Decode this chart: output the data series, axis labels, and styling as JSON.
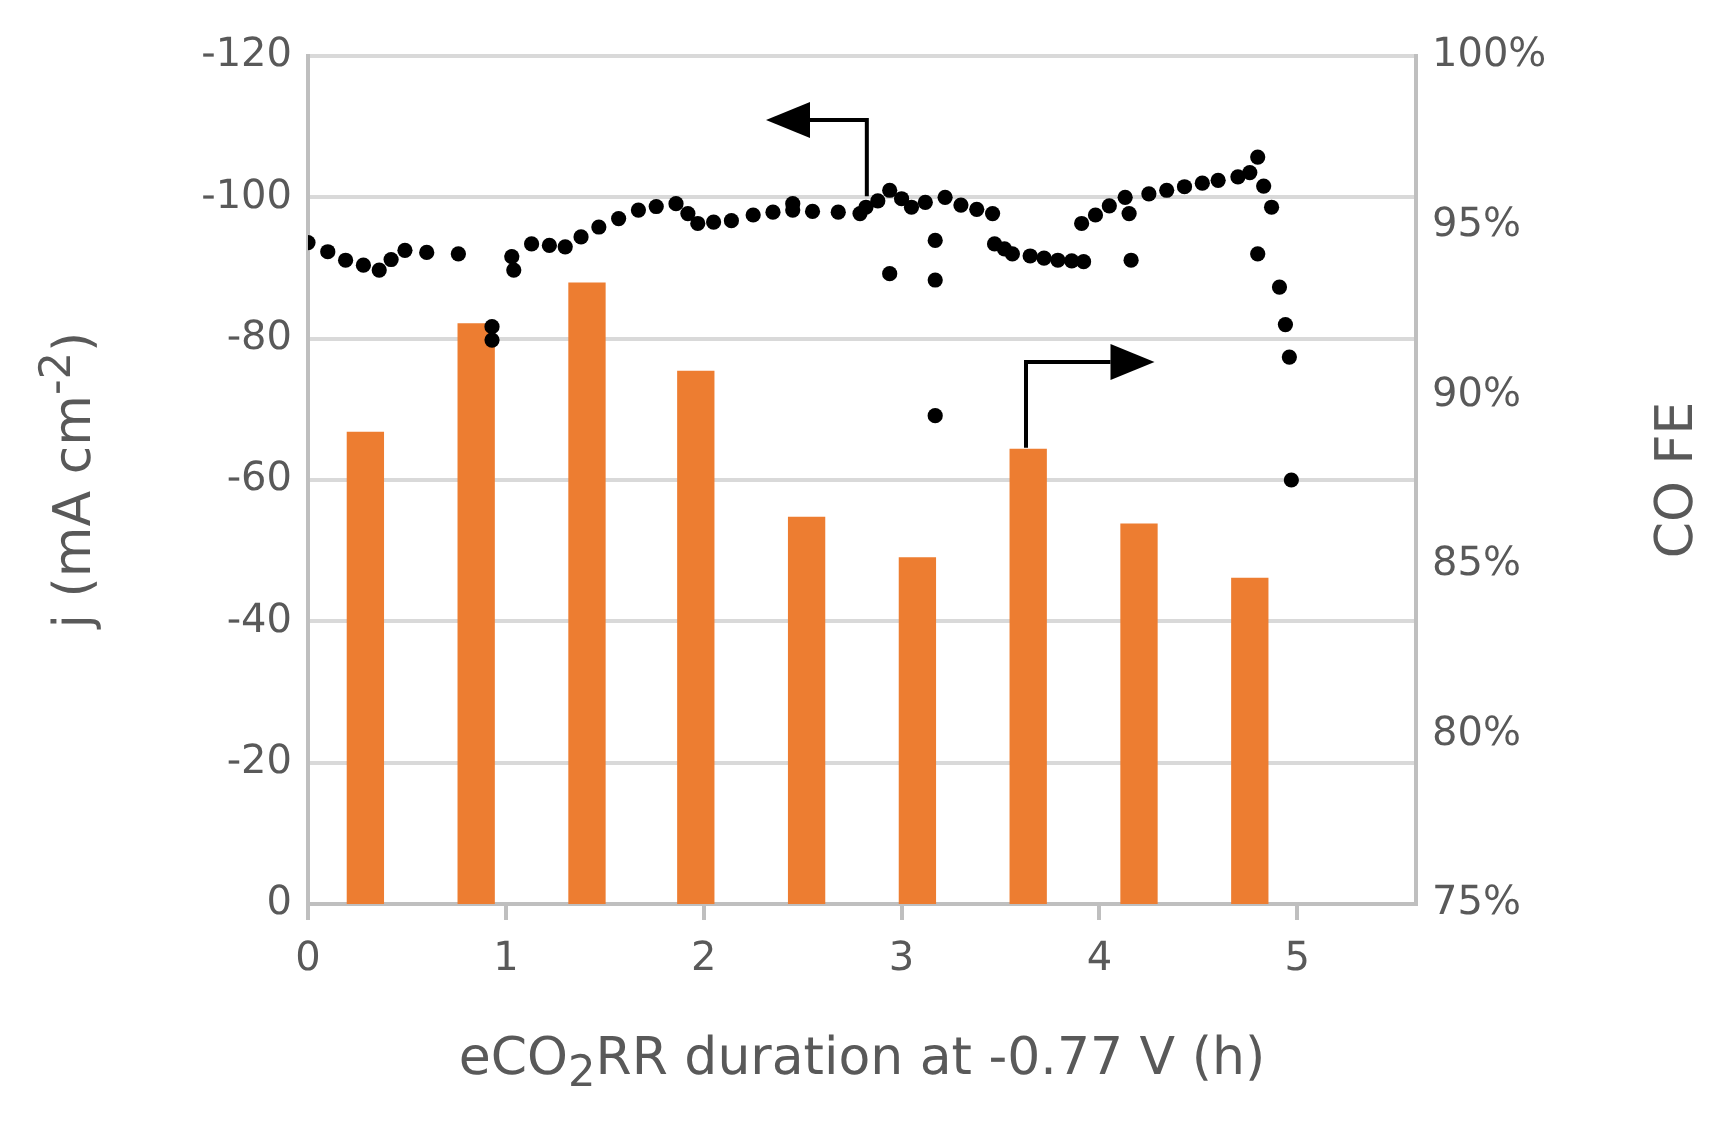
{
  "chart_data": {
    "type": "bar",
    "xlabel": "eCO$_{2}$RR duration at -0.77 V (h)",
    "ylabel": "j (mA cm$^{-2}$)",
    "y2label": "CO FE",
    "xlim": [
      0,
      5.6
    ],
    "xticks": [
      0,
      1,
      2,
      3,
      4,
      5
    ],
    "ylim": [
      0,
      -120
    ],
    "yticks": [
      0,
      -20,
      -40,
      -60,
      -80,
      -100,
      -120
    ],
    "y2lim": [
      75,
      100
    ],
    "y2ticks": [
      {
        "value": 75,
        "label": "75%"
      },
      {
        "value": 80,
        "label": "80%"
      },
      {
        "value": 85,
        "label": "85%"
      },
      {
        "value": 90,
        "label": "90%"
      },
      {
        "value": 95,
        "label": "95%"
      },
      {
        "value": 100,
        "label": "100%"
      }
    ],
    "grid": "y",
    "marker": "circle",
    "series": [
      {
        "axis": "y2",
        "color": "#ed7d31",
        "x": [
          0.29,
          0.85,
          1.41,
          1.96,
          2.52,
          3.08,
          3.64,
          4.2,
          4.76
        ],
        "values": [
          88.9,
          92.1,
          93.3,
          90.7,
          86.4,
          85.2,
          88.4,
          86.2,
          84.6
        ]
      },
      {
        "type": "scatter",
        "axis": "y",
        "color": "#000000",
        "x": [
          0,
          0.1,
          0.19,
          0.28,
          0.36,
          0.42,
          0.49,
          0.6,
          0.76,
          0.93,
          0.93,
          1.03,
          1.04,
          1.13,
          1.22,
          1.3,
          1.38,
          1.47,
          1.57,
          1.67,
          1.76,
          1.86,
          1.92,
          1.97,
          2.05,
          2.14,
          2.25,
          2.35,
          2.45,
          2.45,
          2.55,
          2.68,
          2.79,
          2.82,
          2.88,
          2.94,
          2.94,
          3.0,
          3.05,
          3.12,
          3.17,
          3.17,
          3.17,
          3.22,
          3.3,
          3.38,
          3.46,
          3.47,
          3.52,
          3.56,
          3.65,
          3.72,
          3.79,
          3.86,
          3.92,
          3.91,
          3.98,
          4.05,
          4.13,
          4.15,
          4.16,
          4.25,
          4.34,
          4.43,
          4.52,
          4.6,
          4.7,
          4.76,
          4.8,
          4.83,
          4.8,
          4.87,
          4.91,
          4.94,
          4.96,
          4.97
        ],
        "values": [
          -93.6,
          -92.3,
          -91.1,
          -90.4,
          -89.7,
          -91.2,
          -92.5,
          -92.2,
          -92.0,
          -81.7,
          -79.8,
          -91.6,
          -89.7,
          -93.4,
          -93.2,
          -93.0,
          -94.4,
          -95.8,
          -97.0,
          -98.2,
          -98.7,
          -99.1,
          -97.7,
          -96.3,
          -96.5,
          -96.7,
          -97.5,
          -97.9,
          -98.2,
          -99.1,
          -98.0,
          -97.9,
          -97.7,
          -98.6,
          -99.5,
          -101.0,
          -89.2,
          -99.8,
          -98.6,
          -99.3,
          -93.9,
          -88.3,
          -69.1,
          -100.0,
          -98.9,
          -98.3,
          -97.7,
          -93.4,
          -92.7,
          -92.0,
          -91.7,
          -91.4,
          -91.1,
          -91.0,
          -90.9,
          -96.3,
          -97.5,
          -98.8,
          -100.0,
          -97.7,
          -91.1,
          -100.5,
          -101.0,
          -101.5,
          -102.0,
          -102.4,
          -102.9,
          -103.5,
          -105.7,
          -101.6,
          -92.0,
          -98.6,
          -87.3,
          -82.0,
          -77.4,
          -60.0
        ]
      }
    ]
  }
}
